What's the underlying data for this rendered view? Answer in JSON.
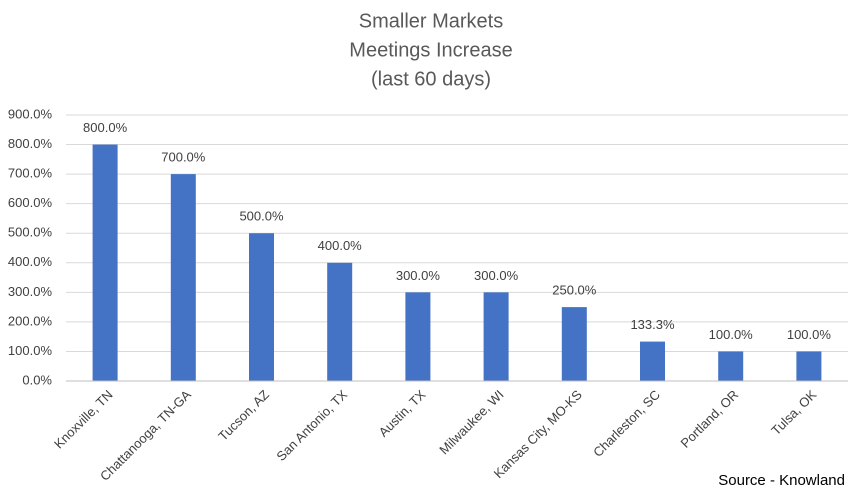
{
  "chart_data": {
    "type": "bar",
    "title": [
      "Smaller Markets",
      "Meetings Increase",
      "(last 60 days)"
    ],
    "annotation": "Source - Knowland",
    "categories": [
      "Knoxville, TN",
      "Chattanooga, TN-GA",
      "Tucson, AZ",
      "San Antonio, TX",
      "Austin, TX",
      "Milwaukee, WI",
      "Kansas City, MO-KS",
      "Charleston, SC",
      "Portland, OR",
      "Tulsa, OK"
    ],
    "values": [
      800,
      700,
      500,
      400,
      300,
      300,
      250,
      133.3,
      100,
      100
    ],
    "value_labels": [
      "800.0%",
      "700.0%",
      "500.0%",
      "400.0%",
      "300.0%",
      "300.0%",
      "250.0%",
      "133.3%",
      "100.0%",
      "100.0%"
    ],
    "color": "#4472c4",
    "ylim": [
      0,
      900
    ],
    "yticks": [
      {
        "value": 0,
        "label": "0.0%"
      },
      {
        "value": 100,
        "label": "100.0%"
      },
      {
        "value": 200,
        "label": "200.0%"
      },
      {
        "value": 300,
        "label": "300.0%"
      },
      {
        "value": 400,
        "label": "400.0%"
      },
      {
        "value": 500,
        "label": "500.0%"
      },
      {
        "value": 600,
        "label": "600.0%"
      },
      {
        "value": 700,
        "label": "700.0%"
      },
      {
        "value": 800,
        "label": "800.0%"
      },
      {
        "value": 900,
        "label": "900.0%"
      }
    ],
    "grid": true
  }
}
